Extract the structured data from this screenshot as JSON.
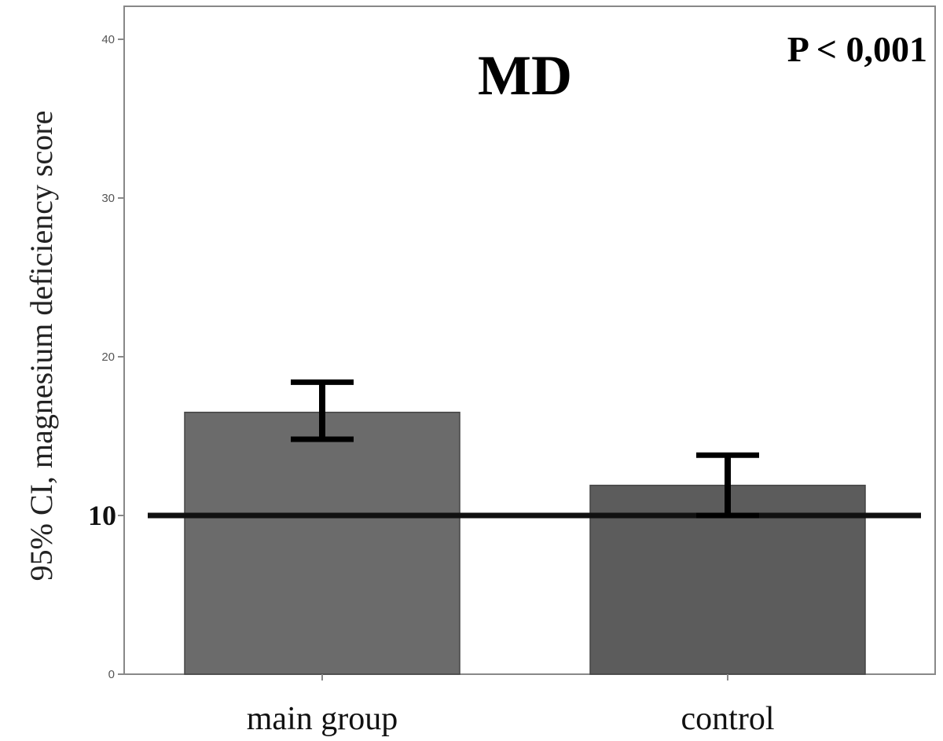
{
  "chart_data": {
    "type": "bar",
    "title": "MD",
    "annotation": "P < 0,001",
    "ylabel": "95% CI, magnesium deficiency score",
    "xlabel": "",
    "categories": [
      "main group",
      "control"
    ],
    "values": [
      16.5,
      11.9
    ],
    "error_bars": [
      {
        "low": 14.8,
        "high": 18.4
      },
      {
        "low": 10.0,
        "high": 13.8
      }
    ],
    "reference_line": {
      "value": 10,
      "label": "10"
    },
    "ylim": [
      0,
      40
    ],
    "yticks": [
      {
        "value": 0,
        "label": "0"
      },
      {
        "value": 20,
        "label": "20"
      },
      {
        "value": 30,
        "label": "30"
      },
      {
        "value": 40,
        "label": "40"
      }
    ],
    "grid": false,
    "colors": {
      "bars": [
        "#6b6b6b",
        "#5c5c5c"
      ],
      "error_bar": "#000000",
      "reference_line": "#111111",
      "axis": "#888888"
    }
  }
}
